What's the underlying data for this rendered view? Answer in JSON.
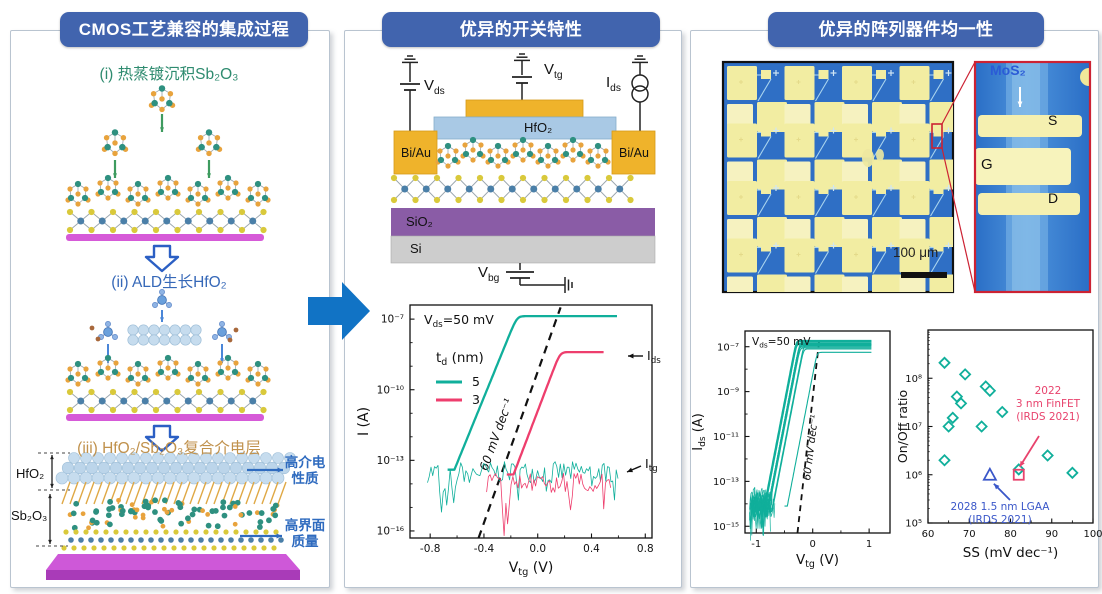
{
  "panels": {
    "left": {
      "title": "CMOS工艺兼容的集成过程",
      "step1": "(i) 热蒸镀沉积Sb₂O₃",
      "step2": "(ii) ALD生长HfO₂",
      "step3": "(iii) HfO₂/Sb₂O₃复合介电层",
      "layer_top": "HfO₂",
      "layer_bottom": "Sb₂O₃",
      "callout_top": "高介电\n性质",
      "callout_bottom": "高界面\n质量"
    },
    "middle": {
      "title": "优异的开关特性",
      "schematic": {
        "vds": {
          "base": "V",
          "sub": "ds"
        },
        "vtg": {
          "base": "V",
          "sub": "tg"
        },
        "ids": {
          "base": "I",
          "sub": "ds"
        },
        "vbg": {
          "base": "V",
          "sub": "bg"
        },
        "hfo2": "HfO₂",
        "biau_left": "Bi/Au",
        "biau_right": "Bi/Au",
        "sio2": "SiO₂",
        "si": "Si"
      }
    },
    "right": {
      "title": "优异的阵列器件均一性",
      "micrograph": {
        "scale_bar": "100 μm",
        "mos2": "MoS₂",
        "source": "S",
        "gate": "G",
        "drain": "D"
      }
    }
  },
  "colors": {
    "header_bg": "#4164AE",
    "flow_arrow": "#1173C5",
    "teal": "#10AF9B",
    "pink": "#EE3E6D",
    "step1_text": "#2E8B6F",
    "step2_text": "#3668B8",
    "step3_text": "#C0914C",
    "callout_text": "#2F6BBF",
    "gate_yellow": "#EFB32B",
    "hfo2_blue": "#A9C9E5",
    "sio2_purple": "#8A5CA6",
    "si_gray": "#CDCDCD",
    "substrate_magenta": "#D65AD8",
    "array_bg": "#2F6FC5",
    "pad_yellow": "#F2EDA2",
    "inset_border": "#CC2233",
    "finfet_pink": "#E8436D",
    "lgaa_blue": "#3A57C9"
  },
  "chart_data": [
    {
      "type": "line",
      "name": "transfer-curves-dielectric-thickness",
      "xlabel_parts": [
        {
          "t": "V"
        },
        {
          "t": "tg",
          "sub": true
        },
        {
          "t": " (V)"
        }
      ],
      "ylabel": "I (A)",
      "annotation_parts": [
        {
          "t": "V"
        },
        {
          "t": "ds",
          "sub": true
        },
        {
          "t": "=50 mV"
        }
      ],
      "slope_label": "60 mV dec⁻¹",
      "legend": {
        "title_parts": [
          {
            "t": "t"
          },
          {
            "t": "d",
            "sub": true
          },
          {
            "t": " (nm)"
          }
        ],
        "entries": [
          {
            "label": "5",
            "color": "#10AF9B"
          },
          {
            "label": "3",
            "color": "#EE3E6D"
          }
        ]
      },
      "curve_label_ids": [
        {
          "t": "I"
        },
        {
          "t": "ds",
          "sub": true
        }
      ],
      "curve_label_itg": [
        {
          "t": "I"
        },
        {
          "t": "tg",
          "sub": true
        }
      ],
      "xlim": [
        -0.95,
        0.85
      ],
      "xticks": [
        -0.8,
        -0.4,
        0,
        0.4,
        0.8
      ],
      "xtick_labels": [
        "-0.8",
        "-0.4",
        "0.0",
        "0.4",
        "0.8"
      ],
      "ylim_exp": [
        -16.3,
        -6.4
      ],
      "ytick_exps": [
        -7,
        -10,
        -13,
        -16
      ],
      "ytick_labels": [
        "10⁻⁷",
        "10⁻¹⁰",
        "10⁻¹³",
        "10⁻¹⁶"
      ],
      "curves": [
        {
          "name": "Ids td=5nm",
          "color": "#10AF9B",
          "v_on": -0.62,
          "floor_exp": -13.4,
          "slope_dec_per_V": 14,
          "sat_exp": -6.87,
          "v_end": 0.6
        },
        {
          "name": "Ids td=3nm",
          "color": "#EE3E6D",
          "v_on": -0.18,
          "floor_exp": -13.6,
          "slope_dec_per_V": 15,
          "sat_exp": -8.4,
          "v_end": 0.5
        }
      ],
      "noise_traces": [
        {
          "name": "Itg td=5nm",
          "color": "#10AF9B",
          "x0": -0.82,
          "x1": 0.6,
          "base_exp": -13.5,
          "amp": 0.45,
          "seed": 7,
          "spikes": [
            {
              "x": -0.72,
              "depth": -15.2
            },
            {
              "x": -0.63,
              "depth": -14.8
            },
            {
              "x": -0.68,
              "depth": -14.9
            }
          ]
        },
        {
          "name": "Itg td=3nm",
          "color": "#EE3E6D",
          "x0": -0.38,
          "x1": 0.55,
          "base_exp": -13.95,
          "amp": 0.4,
          "seed": 13,
          "spikes": [
            {
              "x": -0.25,
              "depth": -16.2
            },
            {
              "x": -0.22,
              "depth": -15.7
            },
            {
              "x": 0.25,
              "depth": -15.1
            }
          ]
        }
      ],
      "dashed_line": {
        "from": [
          -0.44,
          -16.3
        ],
        "to": [
          0.17,
          -6.5
        ]
      }
    },
    {
      "type": "line",
      "name": "array-transfer-curves",
      "xlabel_parts": [
        {
          "t": "V"
        },
        {
          "t": "tg",
          "sub": true
        },
        {
          "t": " (V)"
        }
      ],
      "ylabel_parts": [
        {
          "t": "I"
        },
        {
          "t": "ds",
          "sub": true
        },
        {
          "t": " (A)"
        }
      ],
      "annotation_parts": [
        {
          "t": "V"
        },
        {
          "t": "ds",
          "sub": true
        },
        {
          "t": "=50 mV"
        }
      ],
      "slope_label": "60 mV dec⁻¹",
      "color": "#10AF9B",
      "xlim": [
        -1.2,
        1.37
      ],
      "xticks": [
        -1,
        0,
        1
      ],
      "xtick_labels": [
        "-1",
        "0",
        "1"
      ],
      "ylim_exp": [
        -15.3,
        -6.3
      ],
      "ytick_exps": [
        -7,
        -9,
        -11,
        -13,
        -15
      ],
      "ytick_labels": [
        "10⁻⁷",
        "10⁻⁹",
        "10⁻¹¹",
        "10⁻¹³",
        "10⁻¹⁵"
      ],
      "floor_exp": -14.1,
      "slope_dec_per_V": 13,
      "x_start": -1.12,
      "v_end": 1.05,
      "curves": [
        {
          "v_on": -0.88,
          "sat_exp": -6.72
        },
        {
          "v_on": -0.86,
          "sat_exp": -6.78
        },
        {
          "v_on": -0.85,
          "sat_exp": -6.9
        },
        {
          "v_on": -0.84,
          "sat_exp": -6.75
        },
        {
          "v_on": -0.82,
          "sat_exp": -6.85
        },
        {
          "v_on": -0.81,
          "sat_exp": -6.95
        },
        {
          "v_on": -0.8,
          "sat_exp": -6.8
        },
        {
          "v_on": -0.79,
          "sat_exp": -7.0
        },
        {
          "v_on": -0.77,
          "sat_exp": -6.88
        },
        {
          "v_on": -0.75,
          "sat_exp": -7.05
        },
        {
          "v_on": -0.73,
          "sat_exp": -6.92
        },
        {
          "v_on": -0.71,
          "sat_exp": -7.1
        },
        {
          "v_on": -0.45,
          "sat_exp": -7.25,
          "outlier": true
        }
      ],
      "dashed_line": {
        "from": [
          -0.27,
          -15.3
        ],
        "to": [
          0.12,
          -6.6
        ]
      }
    },
    {
      "type": "scatter",
      "name": "onoff-ratio-vs-ss",
      "xlabel": "SS (mV dec⁻¹)",
      "ylabel": "On/Off ratio",
      "xlim": [
        60,
        100
      ],
      "xticks": [
        60,
        70,
        80,
        90,
        100
      ],
      "xtick_labels": [
        "60",
        "70",
        "80",
        "90",
        "100"
      ],
      "ylim_exp": [
        5,
        9
      ],
      "ytick_exps": [
        5,
        6,
        7,
        8
      ],
      "ytick_labels": [
        "10⁵",
        "10⁶",
        "10⁷",
        "10⁸"
      ],
      "marker": "diamond",
      "marker_color": "#10AF9B",
      "points": [
        [
          64,
          8.32
        ],
        [
          69,
          8.08
        ],
        [
          74,
          7.83
        ],
        [
          75,
          7.74
        ],
        [
          67,
          7.62
        ],
        [
          68,
          7.48
        ],
        [
          78,
          7.3
        ],
        [
          66,
          7.18
        ],
        [
          65,
          7.0
        ],
        [
          73,
          7.0
        ],
        [
          89,
          6.4
        ],
        [
          64,
          6.3
        ],
        [
          82,
          6.11
        ],
        [
          95,
          6.04
        ]
      ],
      "references": [
        {
          "label": "2022\n3 nm FinFET\n(IRDS 2021)",
          "marker": "square",
          "color": "#E8436D",
          "point": [
            82,
            6.0
          ]
        },
        {
          "label": "2028 1.5 nm LGAA\n(IRDS 2021)",
          "marker": "triangle",
          "color": "#3A57C9",
          "point": [
            75,
            6.0
          ]
        }
      ]
    }
  ]
}
